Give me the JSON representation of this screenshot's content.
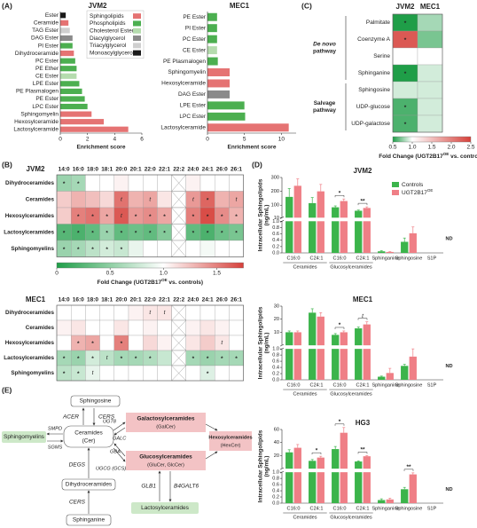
{
  "panel_labels": [
    "(A)",
    "(B)",
    "(C)",
    "(D)",
    "(E)"
  ],
  "chart_data": [
    {
      "type": "bar",
      "orientation": "horizontal",
      "title": "JVM2",
      "categories": [
        "Ester",
        "Ceramide",
        "TAG Ester",
        "DAG Ester",
        "PI Ester",
        "Dihydroceramide",
        "PC Ester",
        "PE Ether",
        "CE Ester",
        "LPE Ester",
        "PE Plasmalogen",
        "PE Ester",
        "LPC Ester",
        "Sphingomyelin",
        "Hexosylceramide",
        "Lactosylceramide"
      ],
      "values": [
        0.4,
        0.6,
        0.7,
        0.9,
        0.9,
        1.0,
        1.1,
        1.2,
        1.2,
        1.4,
        1.6,
        1.8,
        2.0,
        2.3,
        3.2,
        5.0
      ],
      "colors": [
        "#1a1a1a",
        "#e57373",
        "#cfcfcf",
        "#8a8a8a",
        "#4caf50",
        "#e57373",
        "#4caf50",
        "#4caf50",
        "#b5dcae",
        "#4caf50",
        "#4caf50",
        "#4caf50",
        "#4caf50",
        "#e57373",
        "#e57373",
        "#e57373"
      ],
      "xlim": [
        0,
        6
      ],
      "xticks": [
        0,
        2,
        4,
        6
      ],
      "xlabel": "Enrichment score",
      "legend": [
        {
          "name": "Sphingolipids",
          "color": "#e57373"
        },
        {
          "name": "Phospholipids",
          "color": "#4caf50"
        },
        {
          "name": "Cholesterol Ester",
          "color": "#b5dcae"
        },
        {
          "name": "Diacylglycerol",
          "color": "#8a8a8a"
        },
        {
          "name": "Triacylglycerol",
          "color": "#cfcfcf"
        },
        {
          "name": "Monoacylglycerol",
          "color": "#1a1a1a"
        }
      ]
    },
    {
      "type": "bar",
      "orientation": "horizontal",
      "title": "MEC1",
      "categories": [
        "PE Ester",
        "PI Ester",
        "PC Ester",
        "CE Ester",
        "PE Plasmalogen",
        "Sphingomyelin",
        "Hexosylceramide",
        "DAG Ester",
        "LPE Ester",
        "LPC Ester",
        "Lactosylceramide"
      ],
      "values": [
        1.3,
        1.3,
        1.3,
        1.3,
        1.4,
        3.0,
        3.0,
        3.0,
        5.0,
        5.1,
        11.0
      ],
      "colors": [
        "#4caf50",
        "#4caf50",
        "#4caf50",
        "#b5dcae",
        "#4caf50",
        "#e57373",
        "#e57373",
        "#8a8a8a",
        "#4caf50",
        "#4caf50",
        "#e57373"
      ],
      "xlim": [
        0,
        12
      ],
      "xticks": [
        0,
        5,
        10
      ],
      "xlabel": "Enrichment score"
    },
    {
      "type": "heatmap",
      "columns": [
        "JVM2",
        "MEC1"
      ],
      "rows": [
        "Palmitate",
        "Coenzyme A",
        "Serine",
        "Sphinganine",
        "Sphingosine",
        "UDP-glucose",
        "UDP-galactose"
      ],
      "values": [
        [
          0.45,
          0.8
        ],
        [
          2.3,
          0.7
        ],
        [
          1.0,
          1.0
        ],
        [
          0.5,
          0.9
        ],
        [
          0.9,
          0.9
        ],
        [
          0.6,
          0.9
        ],
        [
          0.6,
          0.9
        ]
      ],
      "annotations": [
        [
          "*",
          null
        ],
        [
          "*",
          null
        ],
        [
          null,
          null
        ],
        [
          "*",
          null
        ],
        [
          null,
          null
        ],
        [
          "*",
          null
        ],
        [
          "*",
          null
        ]
      ],
      "groups": [
        {
          "label": [
            "De novo",
            "pathway"
          ],
          "rows": [
            0,
            3
          ]
        },
        {
          "label": [
            "Salvage",
            "pathway"
          ],
          "rows": [
            4,
            6
          ]
        }
      ],
      "zlim": [
        0.5,
        2.5
      ],
      "zmid": 1,
      "colors": [
        "#1f9e48",
        "#ffffff",
        "#d6403a"
      ],
      "colorbar_ticks": [
        0.5,
        {
          "value": 1,
          "label": "1.0"
        },
        1.5,
        {
          "value": 2,
          "label": "2.0"
        },
        2.5
      ],
      "colorbar_label": [
        "Fold Change (UGT2B17",
        "OE",
        " vs. controls)"
      ]
    },
    {
      "type": "heatmap",
      "title": "JVM2",
      "columns": [
        "14:0",
        "16:0",
        "18:0",
        "18:1",
        "20:0",
        "20:1",
        "22:0",
        "22:1",
        "22:2",
        "24:0",
        "24:1",
        "26:0",
        "26:1"
      ],
      "rows": [
        "Dihydroceramides",
        "Ceramides",
        "Hexosylceramides",
        "Lactosylceramides",
        "Sphingomyelins"
      ],
      "values": [
        [
          0.55,
          0.6,
          1.0,
          1.0,
          1.05,
          1.0,
          1.0,
          1.0,
          null,
          1.05,
          1.0,
          1.0,
          1.0
        ],
        [
          1.2,
          1.3,
          1.25,
          1.15,
          1.55,
          1.3,
          1.35,
          1.1,
          null,
          1.4,
          1.6,
          1.3,
          1.35
        ],
        [
          1.2,
          1.5,
          1.55,
          1.35,
          1.65,
          1.4,
          1.45,
          1.35,
          null,
          1.5,
          1.7,
          1.45,
          1.3
        ],
        [
          0.25,
          0.2,
          0.3,
          0.55,
          0.3,
          0.35,
          0.3,
          0.45,
          null,
          0.3,
          0.2,
          0.35,
          0.4
        ],
        [
          0.55,
          0.6,
          0.7,
          0.8,
          0.75,
          0.9,
          1.0,
          1.0,
          null,
          1.0,
          0.95,
          1.0,
          1.0
        ]
      ],
      "annotations": [
        [
          "*",
          "*",
          null,
          null,
          null,
          null,
          null,
          null,
          null,
          null,
          null,
          null,
          null
        ],
        [
          null,
          null,
          null,
          null,
          "t",
          null,
          "t",
          null,
          null,
          "t",
          "*",
          null,
          "t"
        ],
        [
          null,
          "*",
          "*",
          "*",
          "t",
          "*",
          "*",
          "*",
          null,
          "*",
          "*",
          "*",
          "*"
        ],
        [
          "*",
          "*",
          "*",
          "*",
          "*",
          "*",
          "*",
          "*",
          null,
          "*",
          "*",
          "*",
          "*"
        ],
        [
          "*",
          "*",
          "*",
          "*",
          "*",
          null,
          null,
          null,
          null,
          null,
          null,
          null,
          null
        ]
      ],
      "zlim": [
        0,
        1.75
      ],
      "zmid": 1,
      "colors": [
        "#1f9e48",
        "#ffffff",
        "#d6403a"
      ],
      "colorbar_ticks": [
        0,
        0.5,
        {
          "value": 1,
          "label": "1.0"
        },
        1.5
      ],
      "colorbar_label": [
        "Fold Change (UGT2B17",
        "OE",
        " vs. controls)"
      ]
    },
    {
      "type": "heatmap",
      "title": "MEC1",
      "columns": [
        "14:0",
        "16:0",
        "18:0",
        "18:1",
        "20:0",
        "20:1",
        "22:0",
        "22:1",
        "22:2",
        "24:0",
        "24:1",
        "26:0",
        "26:1"
      ],
      "rows": [
        "Dihydroceramides",
        "Ceramides",
        "Hexosylceramides",
        "Lactosylceramides",
        "Sphingomyelins"
      ],
      "values": [
        [
          1.0,
          1.0,
          1.0,
          1.0,
          1.0,
          1.05,
          1.1,
          1.1,
          null,
          1.0,
          1.0,
          1.0,
          1.0
        ],
        [
          1.05,
          1.1,
          1.0,
          1.0,
          1.1,
          1.0,
          1.05,
          1.0,
          null,
          1.05,
          1.1,
          1.05,
          1.0
        ],
        [
          1.0,
          1.3,
          1.35,
          1.0,
          1.5,
          1.0,
          1.15,
          1.05,
          null,
          1.1,
          1.2,
          1.1,
          1.0
        ],
        [
          0.6,
          0.55,
          0.8,
          0.7,
          0.6,
          0.6,
          0.65,
          0.75,
          null,
          0.6,
          0.55,
          0.6,
          0.6
        ],
        [
          0.7,
          0.75,
          0.9,
          1.0,
          1.0,
          1.0,
          1.0,
          1.0,
          null,
          1.0,
          0.85,
          1.0,
          1.0
        ]
      ],
      "annotations": [
        [
          null,
          null,
          null,
          null,
          null,
          null,
          "t",
          "t",
          null,
          null,
          null,
          null,
          null
        ],
        [
          null,
          null,
          null,
          null,
          null,
          null,
          null,
          null,
          null,
          null,
          null,
          null,
          null
        ],
        [
          null,
          "*",
          "*",
          null,
          "*",
          null,
          null,
          null,
          null,
          null,
          null,
          "t",
          null
        ],
        [
          "*",
          "*",
          "*",
          "t",
          "*",
          "*",
          "*",
          null,
          null,
          "*",
          "*",
          "*",
          "*"
        ],
        [
          "*",
          "*",
          "t",
          null,
          null,
          null,
          null,
          null,
          null,
          null,
          "*",
          null,
          null
        ]
      ],
      "zlim": [
        0,
        1.75
      ],
      "zmid": 1,
      "colors": [
        "#1f9e48",
        "#ffffff",
        "#d6403a"
      ]
    },
    {
      "type": "bar",
      "orientation": "vertical",
      "title": "JVM2",
      "legend": true,
      "categories": [
        "C16:0",
        "C24:1",
        "C16:0",
        "C24:1",
        "Sphinganine",
        "Sphingosine",
        "S1P"
      ],
      "groups": [
        {
          "label": "Ceramides",
          "categories": [
            0,
            1
          ]
        },
        {
          "label": "Glucosylceramides",
          "categories": [
            2,
            3
          ]
        }
      ],
      "series": [
        {
          "name": "Controls",
          "color": "#3cb44b",
          "values": [
            160,
            115,
            85,
            60,
            0.05,
            0.35,
            null
          ],
          "errors": [
            60,
            40,
            10,
            5,
            0.02,
            0.12,
            null
          ]
        },
        {
          "name": "UGT2B17",
          "name_superscript": "OE",
          "color": "#ef7f86",
          "values": [
            240,
            200,
            130,
            80,
            0.03,
            0.62,
            null
          ],
          "errors": [
            50,
            50,
            15,
            8,
            0.01,
            0.2,
            null
          ]
        }
      ],
      "segments": [
        {
          "ylim": [
            0,
            1
          ],
          "yticks": [
            {
              "value": 0,
              "label": "0.0"
            },
            0.2,
            0.4,
            0.6,
            0.8,
            {
              "value": 1,
              "label": "1.0"
            }
          ]
        },
        {
          "ylim": [
            10,
            300
          ],
          "yticks": [
            10,
            100,
            200,
            300
          ]
        }
      ],
      "ylabel": [
        "Intracellular Sphingolipids",
        "(ng/mL)"
      ],
      "annotations": [
        {
          "category": 2,
          "label": "*"
        },
        {
          "category": 3,
          "label": "**"
        }
      ],
      "nd": {
        "category": 6,
        "label": "ND"
      }
    },
    {
      "type": "bar",
      "orientation": "vertical",
      "title": "MEC1",
      "legend": false,
      "categories": [
        "C16:0",
        "C24:1",
        "C16:0",
        "C24:1",
        "Sphinganine",
        "Sphingosine",
        "S1P"
      ],
      "groups": [
        {
          "label": "Ceramides",
          "categories": [
            0,
            1
          ]
        },
        {
          "label": "Glucosylceramides",
          "categories": [
            2,
            3
          ]
        }
      ],
      "series": [
        {
          "name": "Controls",
          "color": "#3cb44b",
          "values": [
            10,
            25,
            8,
            13,
            0.1,
            0.45,
            null
          ],
          "errors": [
            1,
            3,
            1,
            1,
            0.02,
            0.05,
            null
          ]
        },
        {
          "name": "UGT2B17",
          "name_superscript": "OE",
          "color": "#ef7f86",
          "values": [
            10,
            22,
            10,
            16,
            0.22,
            0.75,
            null
          ],
          "errors": [
            1,
            3,
            1,
            2,
            0.15,
            0.25,
            null
          ]
        }
      ],
      "segments": [
        {
          "ylim": [
            0,
            1
          ],
          "yticks": [
            {
              "value": 0,
              "label": "0.0"
            },
            0.2,
            0.4,
            0.6,
            0.8,
            {
              "value": 1,
              "label": "1.0"
            }
          ]
        },
        {
          "ylim": [
            0,
            30
          ],
          "yticks": [
            10,
            20,
            30
          ]
        }
      ],
      "ylabel": [
        "Intracellular Sphingolipids",
        "(ng/mL)"
      ],
      "annotations": [
        {
          "category": 2,
          "label": "*"
        },
        {
          "category": 3,
          "label": "t"
        }
      ],
      "nd": {
        "category": 6,
        "label": "ND"
      }
    },
    {
      "type": "bar",
      "orientation": "vertical",
      "title": "HG3",
      "legend": false,
      "categories": [
        "C16:0",
        "C24:1",
        "C16:0",
        "C24:1",
        "Sphinganine",
        "Sphingosine",
        "S1P"
      ],
      "groups": [
        {
          "label": "Ceramides",
          "categories": [
            0,
            1
          ]
        },
        {
          "label": "Glucosylceramides",
          "categories": [
            2,
            3
          ]
        }
      ],
      "series": [
        {
          "name": "Controls",
          "color": "#3cb44b",
          "values": [
            25,
            12,
            30,
            11,
            0.1,
            0.45,
            null
          ],
          "errors": [
            4,
            2,
            4,
            1,
            0.04,
            0.06,
            null
          ]
        },
        {
          "name": "UGT2B17",
          "name_superscript": "OE",
          "color": "#ef7f86",
          "values": [
            32,
            17,
            55,
            19,
            0.12,
            0.93,
            null
          ],
          "errors": [
            5,
            2,
            8,
            1,
            0.04,
            0.05,
            null
          ]
        }
      ],
      "segments": [
        {
          "ylim": [
            0,
            1
          ],
          "yticks": [
            {
              "value": 0,
              "label": "0.0"
            },
            0.2,
            0.4,
            0.6,
            0.8,
            {
              "value": 1,
              "label": "1.0"
            }
          ]
        },
        {
          "ylim": [
            0,
            60
          ],
          "yticks": [
            20,
            40,
            60
          ]
        }
      ],
      "ylabel": [
        "Intracellular Sphingolipids",
        "(ng/mL)"
      ],
      "annotations": [
        {
          "category": 1,
          "label": "*"
        },
        {
          "category": 2,
          "label": "*"
        },
        {
          "category": 3,
          "label": "**"
        },
        {
          "category": 5,
          "label": "**"
        }
      ],
      "nd": {
        "category": 6,
        "label": "ND"
      }
    }
  ],
  "diagram": {
    "nodes": [
      {
        "label": "Sphingosine"
      },
      {
        "label": "Sphingomyelins"
      },
      {
        "label": "Ceramides",
        "sublabel": "(Cer)"
      },
      {
        "label": "Galactosylceramides",
        "sublabel": "(GalCer)"
      },
      {
        "label": "Glucosylceramides",
        "sublabel": "(GluCer, GlcCer)"
      },
      {
        "label": "Hexosylceramides",
        "sublabel": "(HexCer)"
      },
      {
        "label": "Dihydroceramides"
      },
      {
        "label": "Sphinganine"
      },
      {
        "label": "Lactosylceramides"
      }
    ],
    "enzymes": [
      "ACER",
      "CERS",
      "SMPD",
      "SGMS",
      "UGT8",
      "GALC",
      "GBA",
      "UGCG (GCS)",
      "DEGS",
      "CERS",
      "GLB1",
      "B4GALT6"
    ]
  }
}
